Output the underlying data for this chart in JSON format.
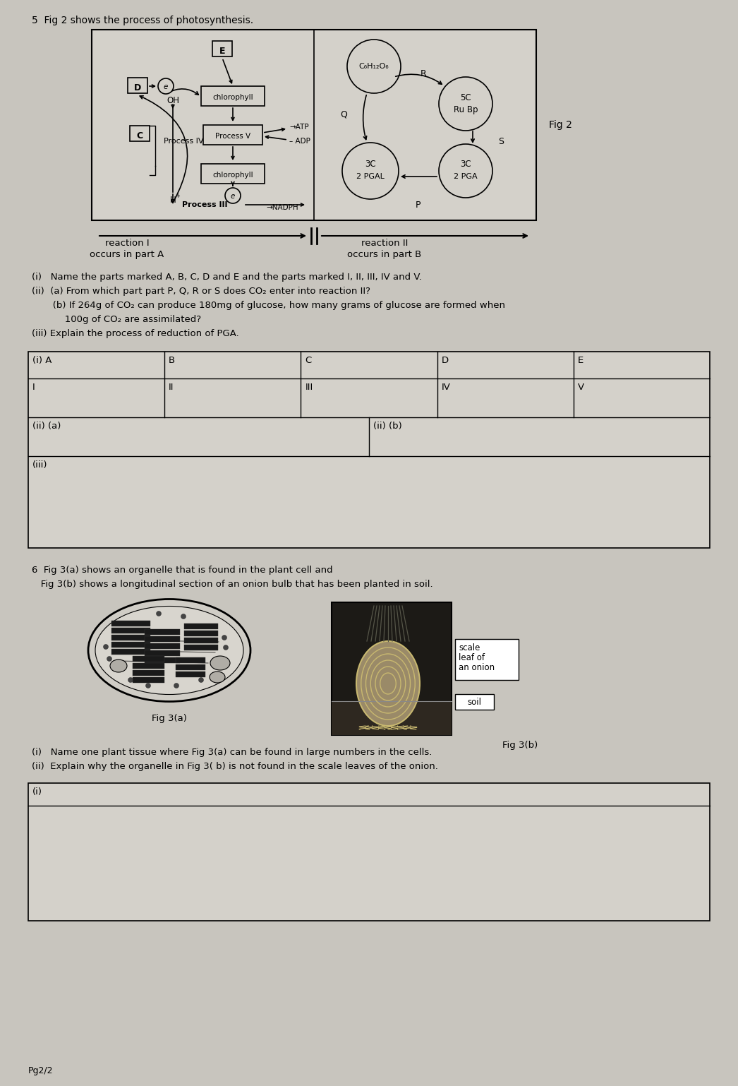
{
  "bg_color": "#c8c5be",
  "paper_color": "#d4d1ca",
  "title_q5": "5  Fig 2 shows the process of photosynthesis.",
  "fig2_label": "Fig 2",
  "q5_i": "(i)   Name the parts marked A, B, C, D and E and the parts marked I, II, III, IV and V.",
  "q5_ii_a": "(ii)  (a) From which part part P, Q, R or S does CO₂ enter into reaction II?",
  "q5_ii_b": "       (b) If 264g of CO₂ can produce 180mg of glucose, how many grams of glucose are formed when",
  "q5_ii_b2": "           100g of CO₂ are assimilated?",
  "q5_iii": "(iii) Explain the process of reduction of PGA.",
  "reaction1_line1": "reaction I",
  "reaction1_line2": "occurs in part A",
  "reaction2_line1": "reaction II",
  "reaction2_line2": "occurs in part B",
  "table1_headers": [
    "(i) A",
    "B",
    "C",
    "D",
    "E"
  ],
  "table1_row2": [
    "I",
    "II",
    "III",
    "IV",
    "V"
  ],
  "table1_row3_left": "(ii) (a)",
  "table1_row3_right": "(ii) (b)",
  "table1_row4": "(iii)",
  "q6_text1": "6  Fig 3(a) shows an organelle that is found in the plant cell and",
  "q6_text2": "   Fig 3(b) shows a longitudinal section of an onion bulb that has been planted in soil.",
  "fig3a_label": "Fig 3(a)",
  "fig3b_label": "Fig 3(b)",
  "fig3b_ann1": "scale",
  "fig3b_ann2": "leaf of",
  "fig3b_ann3": "an onion",
  "fig3b_ann4": "soil",
  "q6_i": "(i)   Name one plant tissue where Fig 3(a) can be found in large numbers in the cells.",
  "q6_ii": "(ii)  Explain why the organelle in Fig 3( b) is not found in the scale leaves of the onion.",
  "table2_row1": "(i)",
  "footer": "Pg2/2"
}
